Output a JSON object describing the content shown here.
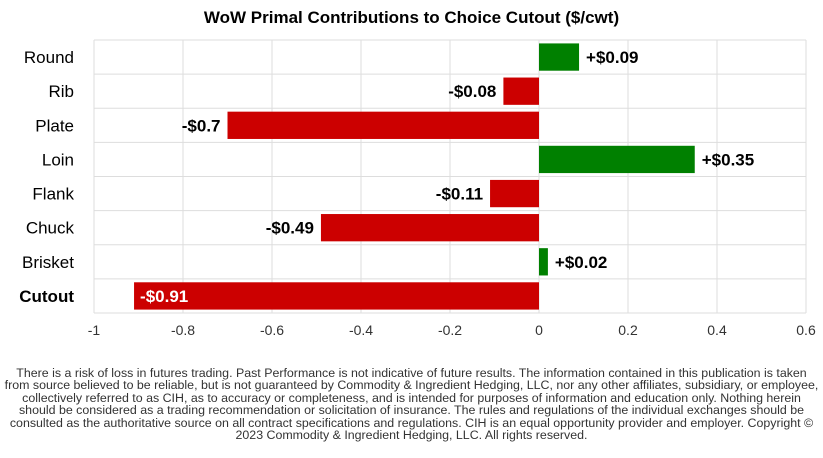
{
  "chart_data": {
    "type": "bar",
    "orientation": "horizontal",
    "title": "WoW Primal Contributions to Choice Cutout ($/cwt)",
    "xlabel": "",
    "ylabel": "",
    "xlim": [
      -1,
      0.6
    ],
    "x_ticks": [
      -1,
      -0.8,
      -0.6,
      -0.4,
      -0.2,
      0,
      0.2,
      0.4,
      0.6
    ],
    "x_tick_labels": [
      "-1",
      "-0.8",
      "-0.6",
      "-0.4",
      "-0.2",
      "0",
      "0.2",
      "0.4",
      "0.6"
    ],
    "categories": [
      "Round",
      "Rib",
      "Plate",
      "Loin",
      "Flank",
      "Chuck",
      "Brisket",
      "Cutout"
    ],
    "values": [
      0.09,
      -0.08,
      -0.7,
      0.35,
      -0.11,
      -0.49,
      0.02,
      -0.91
    ],
    "data_labels": [
      "+$0.09",
      "-$0.08",
      "-$0.7",
      "+$0.35",
      "-$0.11",
      "-$0.49",
      "+$0.02",
      "-$0.91"
    ],
    "bold_categories": [
      "Cutout"
    ],
    "colors": {
      "positive": "#008000",
      "negative": "#cc0000",
      "grid": "#dddddd"
    },
    "grid": true,
    "legend": "none"
  },
  "disclaimer": "There is a risk of loss in futures trading. Past Performance is not indicative of future results. The information contained in this publication is taken from source believed to be reliable, but is not guaranteed by Commodity & Ingredient Hedging, LLC, nor any other affiliates, subsidiary, or employee, collectively referred to as CIH, as to accuracy or completeness, and is intended for purposes of information and education only. Nothing herein should be considered as a trading recommendation or solicitation of insurance. The rules and regulations of the individual exchanges should be consulted as the authoritative source on all contract specifications and regulations. CIH is an equal opportunity provider and employer. Copyright © 2023 Commodity & Ingredient Hedging, LLC. All rights reserved."
}
